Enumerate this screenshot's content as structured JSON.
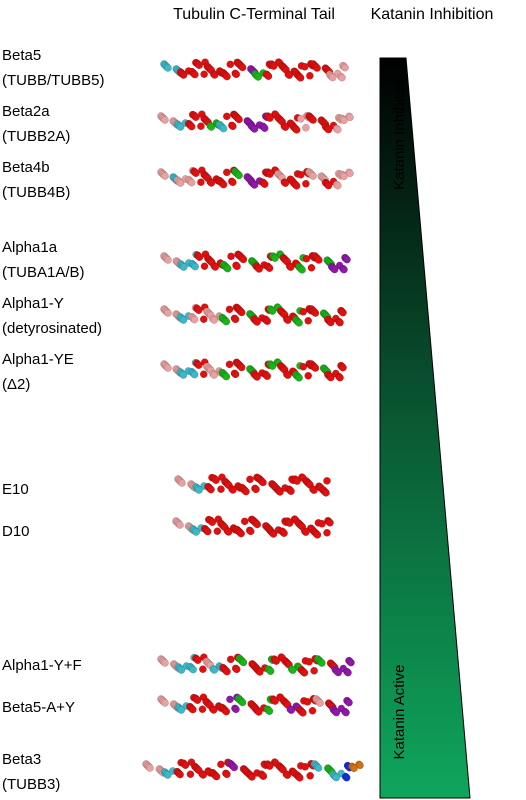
{
  "header": {
    "left_title": "Tubulin C-Terminal Tail",
    "right_title": "Katanin Inhibition"
  },
  "rows": [
    {
      "lines": [
        "Beta5",
        "(TUBB/TUBB5)"
      ]
    },
    {
      "lines": [
        "Beta2a",
        "(TUBB2A)"
      ]
    },
    {
      "lines": [
        "Beta4b",
        "(TUBB4B)"
      ]
    },
    {
      "lines": [
        "Alpha1a",
        "(TUBA1A/B)"
      ]
    },
    {
      "lines": [
        "Alpha1-Y",
        "(detyrosinated)"
      ]
    },
    {
      "lines": [
        "Alpha1-YE",
        "(Δ2)"
      ]
    },
    {
      "lines": [
        "E10"
      ]
    },
    {
      "lines": [
        "D10"
      ]
    },
    {
      "lines": [
        "Alpha1-Y+F"
      ]
    },
    {
      "lines": [
        "Beta5-A+Y"
      ]
    },
    {
      "lines": [
        "Beta3",
        "(TUBB3)"
      ]
    }
  ],
  "gradient": {
    "top_label": "Katanin Inhibited",
    "bottom_label": "Katanin Active"
  }
}
